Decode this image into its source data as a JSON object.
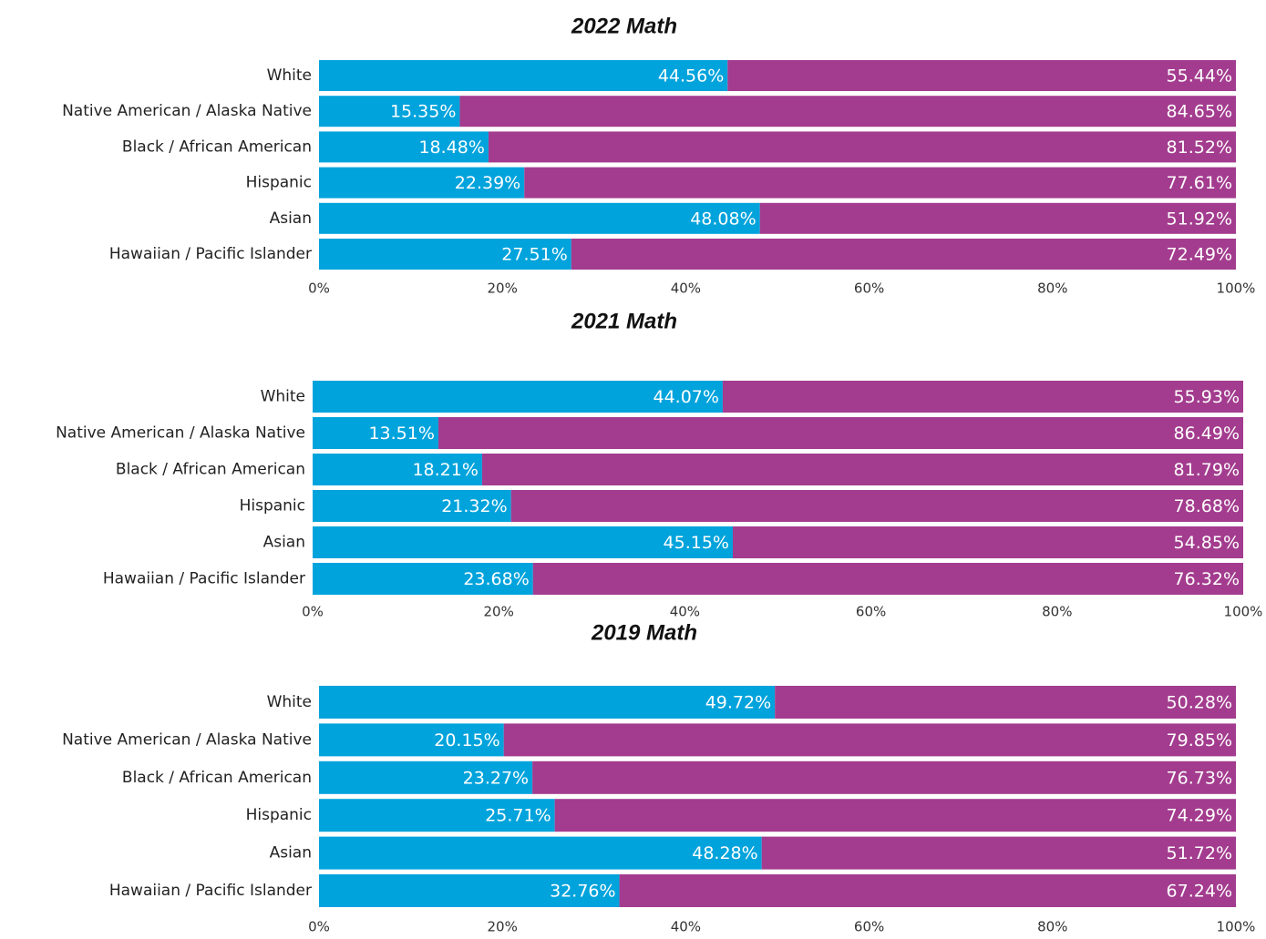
{
  "chart_data": [
    {
      "type": "bar",
      "orientation": "horizontal",
      "stacked": true,
      "title": "2022 Math",
      "categories": [
        "White",
        "Native American / Alaska Native",
        "Black / African American",
        "Hispanic",
        "Asian",
        "Hawaiian / Pacific Islander"
      ],
      "series": [
        {
          "color": "#00a3dc",
          "values": [
            44.56,
            15.35,
            18.48,
            22.39,
            48.08,
            27.51
          ],
          "value_labels": [
            "44.56%",
            "15.35%",
            "18.48%",
            "22.39%",
            "48.08%",
            "27.51%"
          ]
        },
        {
          "color": "#a33c8e",
          "values": [
            55.44,
            84.65,
            81.52,
            77.61,
            51.92,
            72.49
          ],
          "value_labels": [
            "55.44%",
            "84.65%",
            "81.52%",
            "77.61%",
            "51.92%",
            "72.49%"
          ]
        }
      ],
      "xlim": [
        0,
        100
      ],
      "xticks": [
        {
          "value": 0,
          "label": "0%"
        },
        {
          "value": 20,
          "label": "20%"
        },
        {
          "value": 40,
          "label": "40%"
        },
        {
          "value": 60,
          "label": "60%"
        },
        {
          "value": 80,
          "label": "80%"
        },
        {
          "value": 100,
          "label": "100%"
        }
      ]
    },
    {
      "type": "bar",
      "orientation": "horizontal",
      "stacked": true,
      "title": "2021 Math",
      "categories": [
        "White",
        "Native American / Alaska Native",
        "Black / African American",
        "Hispanic",
        "Asian",
        "Hawaiian / Pacific Islander"
      ],
      "series": [
        {
          "color": "#00a3dc",
          "values": [
            44.07,
            13.51,
            18.21,
            21.32,
            45.15,
            23.68
          ],
          "value_labels": [
            "44.07%",
            "13.51%",
            "18.21%",
            "21.32%",
            "45.15%",
            "23.68%"
          ]
        },
        {
          "color": "#a33c8e",
          "values": [
            55.93,
            86.49,
            81.79,
            78.68,
            54.85,
            76.32
          ],
          "value_labels": [
            "55.93%",
            "86.49%",
            "81.79%",
            "78.68%",
            "54.85%",
            "76.32%"
          ]
        }
      ],
      "xlim": [
        0,
        100
      ],
      "xticks": [
        {
          "value": 0,
          "label": "0%"
        },
        {
          "value": 20,
          "label": "20%"
        },
        {
          "value": 40,
          "label": "40%"
        },
        {
          "value": 60,
          "label": "60%"
        },
        {
          "value": 80,
          "label": "80%"
        },
        {
          "value": 100,
          "label": "100%"
        }
      ]
    },
    {
      "type": "bar",
      "orientation": "horizontal",
      "stacked": true,
      "title": "2019 Math",
      "categories": [
        "White",
        "Native American / Alaska Native",
        "Black / African American",
        "Hispanic",
        "Asian",
        "Hawaiian / Pacific Islander"
      ],
      "series": [
        {
          "color": "#00a3dc",
          "values": [
            49.72,
            20.15,
            23.27,
            25.71,
            48.28,
            32.76
          ],
          "value_labels": [
            "49.72%",
            "20.15%",
            "23.27%",
            "25.71%",
            "48.28%",
            "32.76%"
          ]
        },
        {
          "color": "#a33c8e",
          "values": [
            50.28,
            79.85,
            76.73,
            74.29,
            51.72,
            67.24
          ],
          "value_labels": [
            "50.28%",
            "79.85%",
            "76.73%",
            "74.29%",
            "51.72%",
            "67.24%"
          ]
        }
      ],
      "xlim": [
        0,
        100
      ],
      "xticks": [
        {
          "value": 0,
          "label": "0%"
        },
        {
          "value": 20,
          "label": "20%"
        },
        {
          "value": 40,
          "label": "40%"
        },
        {
          "value": 60,
          "label": "60%"
        },
        {
          "value": 80,
          "label": "80%"
        },
        {
          "value": 100,
          "label": "100%"
        }
      ]
    }
  ]
}
